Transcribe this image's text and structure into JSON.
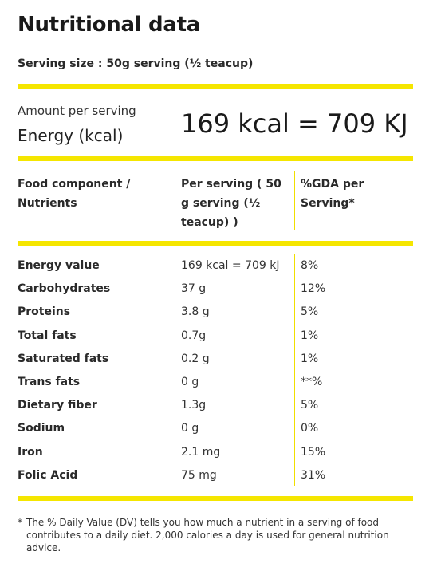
{
  "title": "Nutritional data",
  "serving_size": "Serving size : 50g serving (½ teacup)",
  "amount_per_serving": "Amount per serving",
  "energy_label": "Energy (kcal)",
  "energy_value": "169 kcal = 709 KJ",
  "headers": {
    "component": "Food component / Nutrients",
    "per_serving": "Per serving ( 50 g serving (½ teacup) )",
    "gda": "%GDA per Serving*"
  },
  "rows": [
    {
      "name": "Energy value",
      "value": "169 kcal = 709 kJ",
      "percent": "8%"
    },
    {
      "name": "Carbohydrates",
      "value": "37 g",
      "percent": "12%"
    },
    {
      "name": "Proteins",
      "value": "3.8 g",
      "percent": "5%"
    },
    {
      "name": "Total fats",
      "value": "0.7g",
      "percent": "1%"
    },
    {
      "name": "Saturated fats",
      "value": "0.2 g",
      "percent": "1%"
    },
    {
      "name": "Trans fats",
      "value": "0 g",
      "percent": "**%"
    },
    {
      "name": "Dietary fiber",
      "value": "1.3g",
      "percent": "5%"
    },
    {
      "name": "Sodium",
      "value": "0 g",
      "percent": "0%"
    },
    {
      "name": "Iron",
      "value": "2.1 mg",
      "percent": "15%"
    },
    {
      "name": "Folic Acid",
      "value": "75 mg",
      "percent": "31%"
    }
  ],
  "footnote": {
    "marker": "*",
    "text": "The % Daily Value (DV) tells you how much a nutrient in a serving of food contributes to a daily diet. 2,000 calories a day is used for general nutrition advice."
  },
  "colors": {
    "accent": "#f5e600",
    "text": "#222222"
  }
}
